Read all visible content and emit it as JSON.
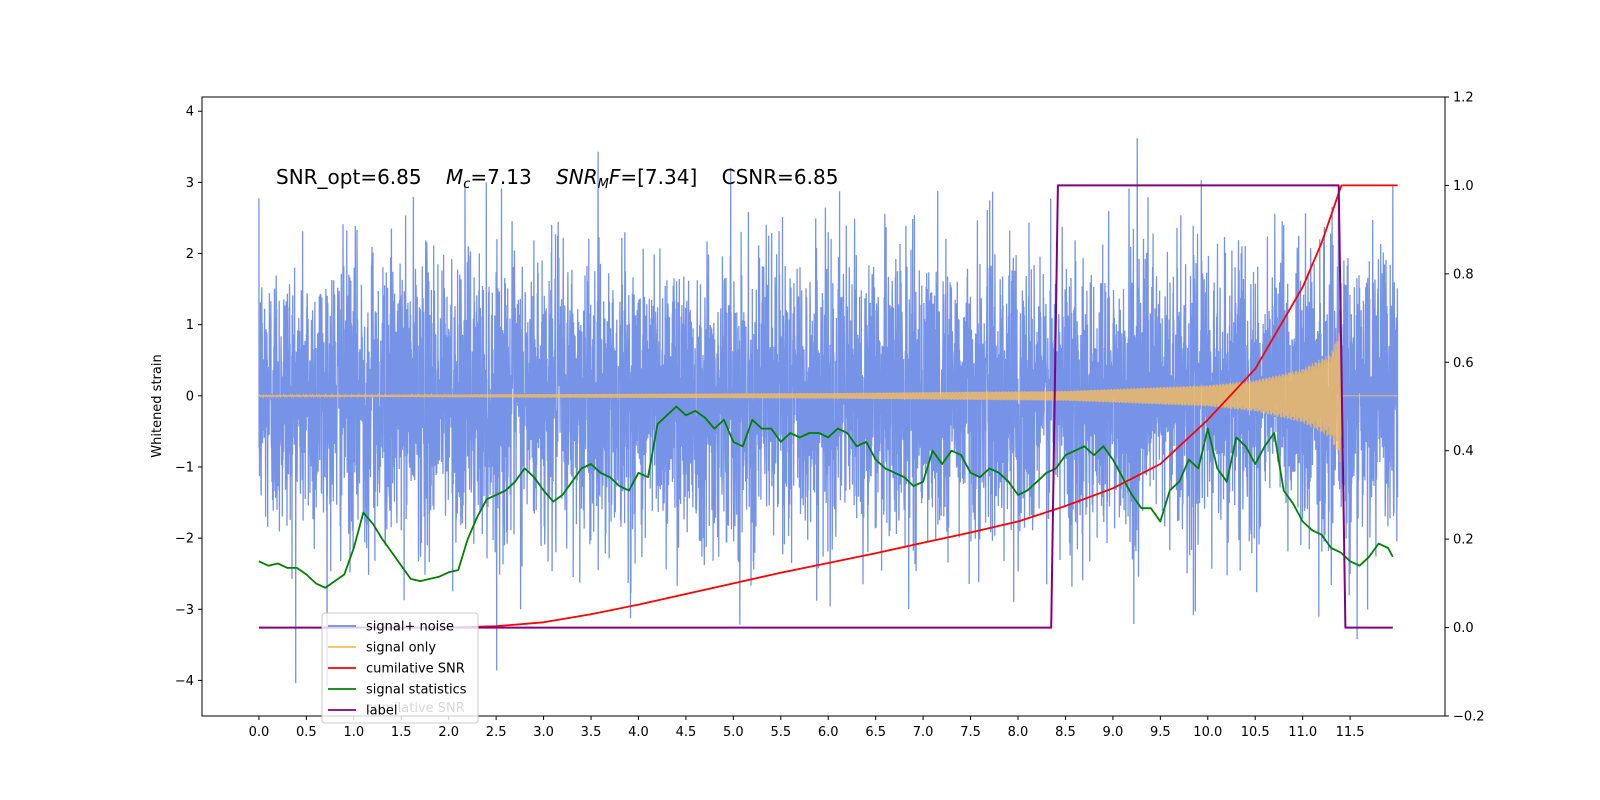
{
  "chart_data": {
    "type": "line",
    "title": "",
    "annotation": {
      "snr_opt": "SNR_opt=6.85",
      "mc_symbol": "M",
      "mc_sub": "c",
      "mc_value": "=7.13",
      "snrmf_symbol": "SNR",
      "snrmf_sub": "M",
      "snrmf_tail": "F",
      "snrmf_value": "=[7.34]",
      "csnr": "CSNR=6.85"
    },
    "xlabel": "",
    "ylabel_left": "Whitened strain",
    "ylabel_right": "",
    "xlim": [
      -0.6,
      12.5
    ],
    "ylim_left": [
      -4.5,
      4.2
    ],
    "ylim_right": [
      -0.2,
      1.2
    ],
    "x_ticks": [
      0.0,
      0.5,
      1.0,
      1.5,
      2.0,
      2.5,
      3.0,
      3.5,
      4.0,
      4.5,
      5.0,
      5.5,
      6.0,
      6.5,
      7.0,
      7.5,
      8.0,
      8.5,
      9.0,
      9.5,
      10.0,
      10.5,
      11.0,
      11.5
    ],
    "x_tick_labels": [
      "0.0",
      "0.5",
      "1.0",
      "1.5",
      "2.0",
      "2.5",
      "3.0",
      "3.5",
      "4.0",
      "4.5",
      "5.0",
      "5.5",
      "6.0",
      "6.5",
      "7.0",
      "7.5",
      "8.0",
      "8.5",
      "9.0",
      "9.5",
      "10.0",
      "10.5",
      "11.0",
      "11.5"
    ],
    "y_left_ticks": [
      -4,
      -3,
      -2,
      -1,
      0,
      1,
      2,
      3,
      4
    ],
    "y_left_tick_labels": [
      "−4",
      "−3",
      "−2",
      "−1",
      "0",
      "1",
      "2",
      "3",
      "4"
    ],
    "y_right_ticks": [
      -0.2,
      0.0,
      0.2,
      0.4,
      0.6,
      0.8,
      1.0,
      1.2
    ],
    "y_right_tick_labels": [
      "−0.2",
      "0.0",
      "0.2",
      "0.4",
      "0.6",
      "0.8",
      "1.0",
      "1.2"
    ],
    "legend_position": "lower-left",
    "series": [
      {
        "name": "signal+ noise",
        "color": "#6f8de6",
        "axis": "left",
        "kind": "noise",
        "x_range": [
          0.0,
          12.0
        ],
        "approx_std": 1.0,
        "observed_max": 3.85,
        "observed_min": -4.1
      },
      {
        "name": "signal only",
        "color": "#ffbf55",
        "axis": "left",
        "kind": "chirp",
        "x_range": [
          0.0,
          12.0
        ],
        "merger_x": 11.4,
        "envelope": [
          [
            0.0,
            0.01
          ],
          [
            6.0,
            0.04
          ],
          [
            8.5,
            0.07
          ],
          [
            10.0,
            0.15
          ],
          [
            10.5,
            0.22
          ],
          [
            11.0,
            0.38
          ],
          [
            11.3,
            0.6
          ],
          [
            11.4,
            0.95
          ],
          [
            11.42,
            0.0
          ],
          [
            12.0,
            0.0
          ]
        ]
      },
      {
        "name": "cumilative SNR",
        "color": "#ff0000",
        "axis": "right",
        "x": [
          2.0,
          2.5,
          3.0,
          3.5,
          4.0,
          4.5,
          5.0,
          5.5,
          6.0,
          6.5,
          7.0,
          7.5,
          8.0,
          8.5,
          9.0,
          9.5,
          10.0,
          10.5,
          11.0,
          11.2,
          11.4,
          11.41,
          12.0
        ],
        "y": [
          0.0,
          0.003,
          0.012,
          0.03,
          0.052,
          0.076,
          0.1,
          0.124,
          0.146,
          0.168,
          0.192,
          0.215,
          0.24,
          0.275,
          0.315,
          0.37,
          0.47,
          0.585,
          0.77,
          0.87,
          0.995,
          1.0,
          1.0
        ]
      },
      {
        "name": "signal statistics",
        "color": "#008000",
        "axis": "right",
        "x": [
          0.0,
          0.1,
          0.2,
          0.3,
          0.4,
          0.5,
          0.6,
          0.7,
          0.8,
          0.9,
          1.0,
          1.1,
          1.2,
          1.3,
          1.4,
          1.5,
          1.6,
          1.7,
          1.8,
          1.9,
          2.0,
          2.1,
          2.2,
          2.3,
          2.4,
          2.5,
          2.6,
          2.7,
          2.8,
          2.9,
          3.0,
          3.1,
          3.2,
          3.3,
          3.4,
          3.5,
          3.6,
          3.7,
          3.8,
          3.9,
          4.0,
          4.1,
          4.2,
          4.3,
          4.4,
          4.5,
          4.6,
          4.7,
          4.8,
          4.9,
          5.0,
          5.1,
          5.2,
          5.3,
          5.4,
          5.5,
          5.6,
          5.7,
          5.8,
          5.9,
          6.0,
          6.1,
          6.2,
          6.3,
          6.4,
          6.5,
          6.6,
          6.7,
          6.8,
          6.9,
          7.0,
          7.1,
          7.2,
          7.3,
          7.4,
          7.5,
          7.6,
          7.7,
          7.8,
          7.9,
          8.0,
          8.1,
          8.2,
          8.3,
          8.4,
          8.5,
          8.6,
          8.7,
          8.8,
          8.9,
          9.0,
          9.1,
          9.2,
          9.3,
          9.4,
          9.5,
          9.6,
          9.7,
          9.8,
          9.9,
          10.0,
          10.1,
          10.2,
          10.3,
          10.4,
          10.5,
          10.6,
          10.7,
          10.8,
          10.9,
          11.0,
          11.1,
          11.2,
          11.3,
          11.4,
          11.5,
          11.6,
          11.7,
          11.8,
          11.9,
          11.95
        ],
        "y": [
          0.15,
          0.14,
          0.145,
          0.135,
          0.135,
          0.12,
          0.1,
          0.09,
          0.105,
          0.12,
          0.18,
          0.26,
          0.235,
          0.2,
          0.17,
          0.14,
          0.11,
          0.105,
          0.11,
          0.115,
          0.125,
          0.13,
          0.2,
          0.25,
          0.29,
          0.3,
          0.31,
          0.33,
          0.36,
          0.34,
          0.31,
          0.285,
          0.3,
          0.33,
          0.36,
          0.37,
          0.35,
          0.34,
          0.32,
          0.31,
          0.35,
          0.34,
          0.46,
          0.48,
          0.5,
          0.48,
          0.49,
          0.475,
          0.45,
          0.47,
          0.42,
          0.41,
          0.47,
          0.45,
          0.45,
          0.42,
          0.44,
          0.43,
          0.44,
          0.44,
          0.43,
          0.45,
          0.44,
          0.41,
          0.42,
          0.38,
          0.36,
          0.35,
          0.34,
          0.32,
          0.33,
          0.4,
          0.37,
          0.4,
          0.39,
          0.35,
          0.34,
          0.36,
          0.35,
          0.33,
          0.3,
          0.31,
          0.33,
          0.35,
          0.36,
          0.39,
          0.4,
          0.41,
          0.39,
          0.41,
          0.38,
          0.34,
          0.3,
          0.27,
          0.27,
          0.24,
          0.31,
          0.33,
          0.38,
          0.36,
          0.45,
          0.36,
          0.33,
          0.43,
          0.41,
          0.37,
          0.41,
          0.44,
          0.31,
          0.28,
          0.24,
          0.22,
          0.21,
          0.18,
          0.17,
          0.15,
          0.14,
          0.16,
          0.19,
          0.18,
          0.16
        ]
      },
      {
        "name": "label",
        "color": "#800080",
        "axis": "right",
        "x": [
          0.0,
          8.35,
          8.42,
          11.38,
          11.45,
          11.95
        ],
        "y": [
          0.0,
          0.0,
          1.0,
          1.0,
          0.0,
          0.0
        ]
      }
    ],
    "legend_overlap_text": "cumilative SNR"
  }
}
